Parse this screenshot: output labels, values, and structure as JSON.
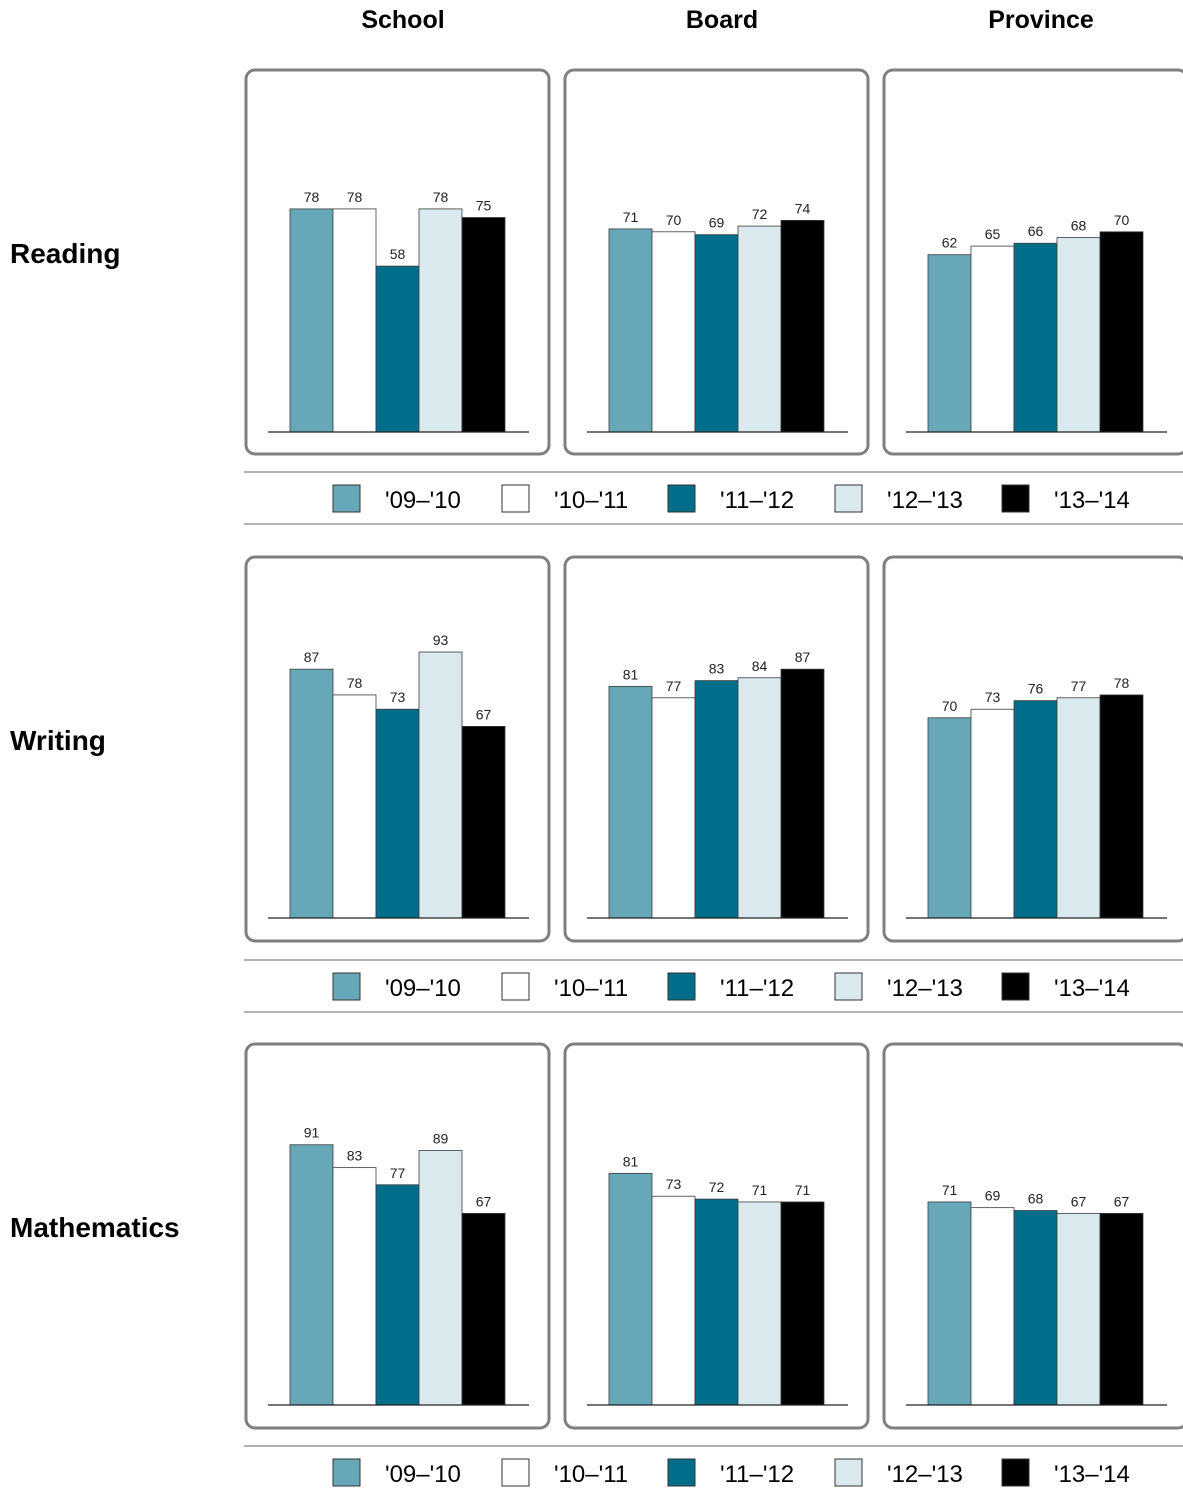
{
  "columns": [
    "School",
    "Board",
    "Province"
  ],
  "legend": [
    {
      "label": "'09–'10",
      "color": "#66a8b8"
    },
    {
      "label": "'10–'11",
      "color": "#ffffff"
    },
    {
      "label": "'11–'12",
      "color": "#006e8a"
    },
    {
      "label": "'12–'13",
      "color": "#d9e9ee"
    },
    {
      "label": "'13–'14",
      "color": "#000000"
    }
  ],
  "chart_data": [
    {
      "type": "bar",
      "subject": "Reading",
      "group": "School",
      "categories": [
        "'09–'10",
        "'10–'11",
        "'11–'12",
        "'12–'13",
        "'13–'14"
      ],
      "values": [
        78,
        78,
        58,
        78,
        75
      ],
      "ylim": [
        0,
        100
      ]
    },
    {
      "type": "bar",
      "subject": "Reading",
      "group": "Board",
      "categories": [
        "'09–'10",
        "'10–'11",
        "'11–'12",
        "'12–'13",
        "'13–'14"
      ],
      "values": [
        71,
        70,
        69,
        72,
        74
      ],
      "ylim": [
        0,
        100
      ]
    },
    {
      "type": "bar",
      "subject": "Reading",
      "group": "Province",
      "categories": [
        "'09–'10",
        "'10–'11",
        "'11–'12",
        "'12–'13",
        "'13–'14"
      ],
      "values": [
        62,
        65,
        66,
        68,
        70
      ],
      "ylim": [
        0,
        100
      ]
    },
    {
      "type": "bar",
      "subject": "Writing",
      "group": "School",
      "categories": [
        "'09–'10",
        "'10–'11",
        "'11–'12",
        "'12–'13",
        "'13–'14"
      ],
      "values": [
        87,
        78,
        73,
        93,
        67
      ],
      "ylim": [
        0,
        100
      ]
    },
    {
      "type": "bar",
      "subject": "Writing",
      "group": "Board",
      "categories": [
        "'09–'10",
        "'10–'11",
        "'11–'12",
        "'12–'13",
        "'13–'14"
      ],
      "values": [
        81,
        77,
        83,
        84,
        87
      ],
      "ylim": [
        0,
        100
      ]
    },
    {
      "type": "bar",
      "subject": "Writing",
      "group": "Province",
      "categories": [
        "'09–'10",
        "'10–'11",
        "'11–'12",
        "'12–'13",
        "'13–'14"
      ],
      "values": [
        70,
        73,
        76,
        77,
        78
      ],
      "ylim": [
        0,
        100
      ]
    },
    {
      "type": "bar",
      "subject": "Mathematics",
      "group": "School",
      "categories": [
        "'09–'10",
        "'10–'11",
        "'11–'12",
        "'12–'13",
        "'13–'14"
      ],
      "values": [
        91,
        83,
        77,
        89,
        67
      ],
      "ylim": [
        0,
        100
      ]
    },
    {
      "type": "bar",
      "subject": "Mathematics",
      "group": "Board",
      "categories": [
        "'09–'10",
        "'10–'11",
        "'11–'12",
        "'12–'13",
        "'13–'14"
      ],
      "values": [
        81,
        73,
        72,
        71,
        71
      ],
      "ylim": [
        0,
        100
      ]
    },
    {
      "type": "bar",
      "subject": "Mathematics",
      "group": "Province",
      "categories": [
        "'09–'10",
        "'10–'11",
        "'11–'12",
        "'12–'13",
        "'13–'14"
      ],
      "values": [
        71,
        69,
        68,
        67,
        67
      ],
      "ylim": [
        0,
        100
      ]
    }
  ]
}
